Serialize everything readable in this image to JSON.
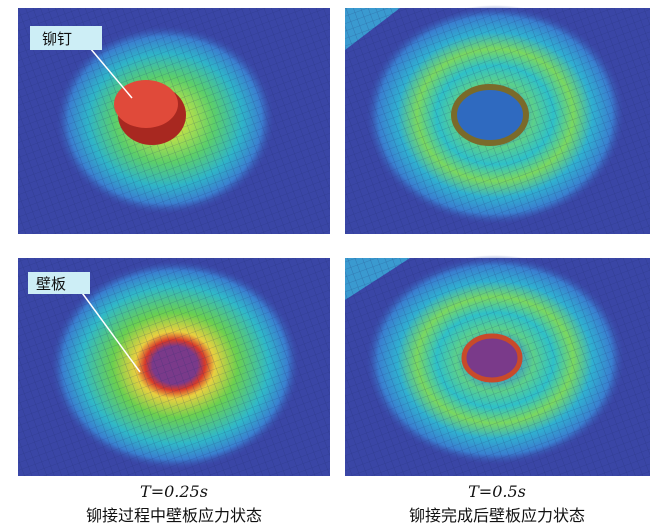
{
  "panels": {
    "rivet_label": "铆钉",
    "panel_label": "壁板"
  },
  "captions": [
    {
      "time": "T=0.25s",
      "text": "铆接过程中壁板应力状态"
    },
    {
      "time": "T=0.5s",
      "text": "铆接完成后壁板应力状态"
    }
  ]
}
